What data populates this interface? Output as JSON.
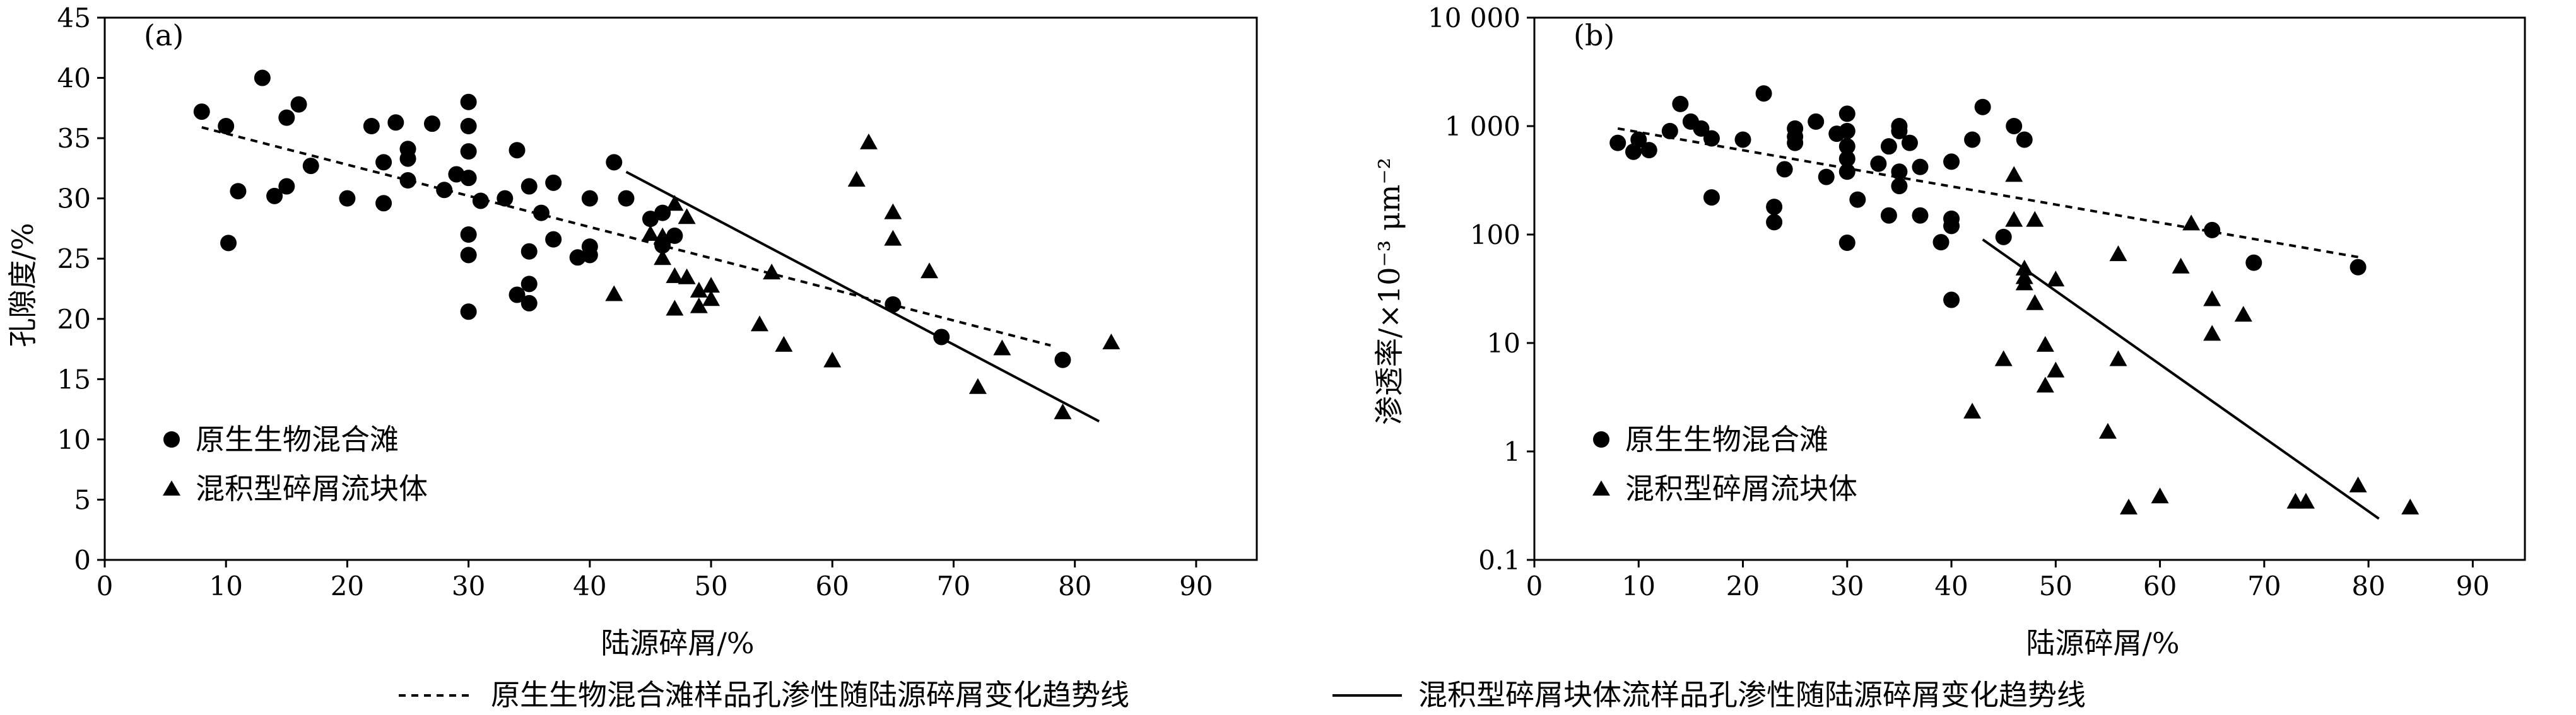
{
  "figure": {
    "legend_bottom": {
      "dashed_label": "原生生物混合滩样品孔渗性随陆源碎屑变化趋势线",
      "solid_label": "混积型碎屑块体流样品孔渗性随陆源碎屑变化趋势线"
    }
  },
  "chart_data": [
    {
      "type": "scatter",
      "panel_label": "(a)",
      "xlabel": "陆源碎屑/%",
      "ylabel": "孔隙度/%",
      "xlim": [
        0,
        95
      ],
      "ylim": [
        0,
        45
      ],
      "x_ticks": [
        0,
        10,
        20,
        30,
        40,
        50,
        60,
        70,
        80,
        90
      ],
      "y_ticks": [
        0,
        5,
        10,
        15,
        20,
        25,
        30,
        35,
        40,
        45
      ],
      "y_tick_labels": [
        "0",
        "5",
        "10",
        "15",
        "20",
        "25",
        "30",
        "35",
        "40",
        "45"
      ],
      "y_scale": "linear",
      "grid": false,
      "legend_position": "bottom-left",
      "series": [
        {
          "name": "原生生物混合滩",
          "marker": "circle",
          "points": [
            [
              8,
              37.2
            ],
            [
              10,
              36
            ],
            [
              10.2,
              26.3
            ],
            [
              11,
              30.6
            ],
            [
              13,
              40
            ],
            [
              14,
              30.2
            ],
            [
              15,
              36.7
            ],
            [
              15,
              31
            ],
            [
              16,
              37.8
            ],
            [
              17,
              32.7
            ],
            [
              20,
              30
            ],
            [
              22,
              36
            ],
            [
              23,
              33
            ],
            [
              23,
              29.6
            ],
            [
              24,
              36.3
            ],
            [
              25,
              34.1
            ],
            [
              25,
              33.3
            ],
            [
              25,
              31.5
            ],
            [
              27,
              36.2
            ],
            [
              28,
              30.7
            ],
            [
              29,
              32
            ],
            [
              30,
              38
            ],
            [
              30,
              36
            ],
            [
              30,
              33.9
            ],
            [
              30,
              31.7
            ],
            [
              30,
              27
            ],
            [
              30,
              25.3
            ],
            [
              30,
              20.6
            ],
            [
              31,
              29.8
            ],
            [
              33,
              30
            ],
            [
              34,
              34
            ],
            [
              34,
              22
            ],
            [
              35,
              31
            ],
            [
              35,
              25.6
            ],
            [
              35,
              22.9
            ],
            [
              35,
              21.3
            ],
            [
              36,
              28.8
            ],
            [
              37,
              31.3
            ],
            [
              37,
              26.6
            ],
            [
              39,
              25.1
            ],
            [
              40,
              30
            ],
            [
              40,
              26
            ],
            [
              40,
              25.3
            ],
            [
              42,
              33
            ],
            [
              43,
              30
            ],
            [
              45,
              28.3
            ],
            [
              46,
              28.8
            ],
            [
              46,
              26.1
            ],
            [
              47,
              26.9
            ],
            [
              65,
              21.2
            ],
            [
              69,
              18.5
            ],
            [
              79,
              16.6
            ]
          ]
        },
        {
          "name": "混积型碎屑流块体",
          "marker": "triangle",
          "points": [
            [
              42,
              22
            ],
            [
              45,
              27
            ],
            [
              46,
              26.8
            ],
            [
              46,
              25
            ],
            [
              47,
              29.5
            ],
            [
              47,
              23.5
            ],
            [
              47,
              20.8
            ],
            [
              48,
              28.4
            ],
            [
              48,
              23.4
            ],
            [
              49,
              21
            ],
            [
              49,
              22.3
            ],
            [
              50,
              22.7
            ],
            [
              50,
              21.6
            ],
            [
              54,
              19.5
            ],
            [
              55,
              23.8
            ],
            [
              56,
              17.8
            ],
            [
              60,
              16.5
            ],
            [
              62,
              31.5
            ],
            [
              63,
              34.6
            ],
            [
              65,
              28.8
            ],
            [
              65,
              26.6
            ],
            [
              68,
              23.9
            ],
            [
              72,
              14.3
            ],
            [
              74,
              17.5
            ],
            [
              79,
              12.2
            ],
            [
              83,
              18
            ]
          ]
        }
      ],
      "trendlines": [
        {
          "style": "dashed",
          "from": [
            8,
            35.9
          ],
          "to": [
            78,
            17.8
          ]
        },
        {
          "style": "solid",
          "from": [
            43,
            32.2
          ],
          "to": [
            82,
            11.5
          ]
        }
      ],
      "legend": [
        "原生生物混合滩",
        "混积型碎屑流块体"
      ]
    },
    {
      "type": "scatter",
      "panel_label": "(b)",
      "xlabel": "陆源碎屑/%",
      "ylabel": "渗透率/×10⁻³ μm⁻²",
      "xlim": [
        0,
        95
      ],
      "ylim": [
        0.1,
        10000
      ],
      "x_ticks": [
        0,
        10,
        20,
        30,
        40,
        50,
        60,
        70,
        80,
        90
      ],
      "y_ticks": [
        0.1,
        1,
        10,
        100,
        1000,
        10000
      ],
      "y_tick_labels": [
        "0.1",
        "1",
        "10",
        "100",
        "1 000",
        "10 000"
      ],
      "y_scale": "log",
      "grid": false,
      "legend_position": "bottom-left",
      "series": [
        {
          "name": "原生生物混合滩",
          "marker": "circle",
          "points": [
            [
              8,
              700
            ],
            [
              9.5,
              580
            ],
            [
              10,
              750
            ],
            [
              11,
              600
            ],
            [
              13,
              900
            ],
            [
              14,
              1600
            ],
            [
              15,
              1100
            ],
            [
              16,
              950
            ],
            [
              17,
              770
            ],
            [
              17,
              220
            ],
            [
              20,
              750
            ],
            [
              22,
              2000
            ],
            [
              23,
              180
            ],
            [
              23,
              130
            ],
            [
              24,
              400
            ],
            [
              25,
              800
            ],
            [
              25,
              700
            ],
            [
              25,
              950
            ],
            [
              27,
              1100
            ],
            [
              28,
              340
            ],
            [
              29,
              850
            ],
            [
              30,
              1300
            ],
            [
              30,
              900
            ],
            [
              30,
              650
            ],
            [
              30,
              500
            ],
            [
              30,
              380
            ],
            [
              30,
              84
            ],
            [
              31,
              210
            ],
            [
              33,
              450
            ],
            [
              34,
              650
            ],
            [
              34,
              150
            ],
            [
              35,
              1000
            ],
            [
              35,
              900
            ],
            [
              35,
              380
            ],
            [
              35,
              280
            ],
            [
              36,
              700
            ],
            [
              37,
              420
            ],
            [
              37,
              150
            ],
            [
              39,
              85
            ],
            [
              40,
              470
            ],
            [
              40,
              140
            ],
            [
              40,
              25
            ],
            [
              40,
              120
            ],
            [
              42,
              750
            ],
            [
              43,
              1500
            ],
            [
              45,
              95
            ],
            [
              46,
              1000
            ],
            [
              47,
              750
            ],
            [
              65,
              110
            ],
            [
              69,
              55
            ],
            [
              79,
              50
            ]
          ]
        },
        {
          "name": "混积型碎屑流块体",
          "marker": "triangle",
          "points": [
            [
              42,
              2.3
            ],
            [
              45,
              7
            ],
            [
              46,
              350
            ],
            [
              46,
              135
            ],
            [
              47,
              48
            ],
            [
              47,
              40
            ],
            [
              47,
              35
            ],
            [
              48,
              135
            ],
            [
              48,
              23
            ],
            [
              49,
              9.5
            ],
            [
              49,
              4
            ],
            [
              50,
              5.5
            ],
            [
              50,
              38
            ],
            [
              55,
              1.5
            ],
            [
              56,
              65
            ],
            [
              56,
              7
            ],
            [
              57,
              0.3
            ],
            [
              60,
              0.38
            ],
            [
              62,
              50
            ],
            [
              63,
              125
            ],
            [
              65,
              25
            ],
            [
              65,
              12
            ],
            [
              68,
              18
            ],
            [
              73,
              0.34
            ],
            [
              74,
              0.34
            ],
            [
              79,
              0.48
            ],
            [
              84,
              0.3
            ]
          ]
        }
      ],
      "trendlines": [
        {
          "style": "dashed",
          "from": [
            8,
            950
          ],
          "to": [
            79,
            62
          ]
        },
        {
          "style": "solid",
          "from": [
            43,
            90
          ],
          "to": [
            81,
            0.24
          ]
        }
      ],
      "legend": [
        "原生生物混合滩",
        "混积型碎屑流块体"
      ]
    }
  ]
}
